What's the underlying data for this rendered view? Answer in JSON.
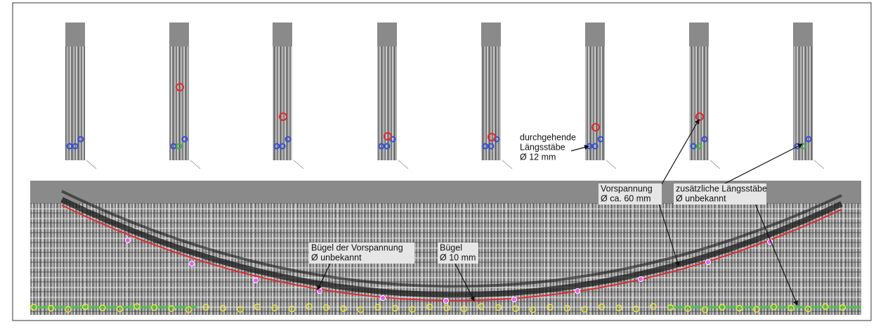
{
  "annotations": [
    {
      "lines": [
        "durchgehende",
        "Längsstäbe",
        "Ø 12 mm"
      ]
    },
    {
      "lines": [
        "Vorspannung",
        "Ø ca. 60 mm"
      ]
    },
    {
      "lines": [
        "zusätzliche Längsstäbe",
        "Ø unbekannt"
      ]
    },
    {
      "lines": [
        "Bügel der  Vorspannung",
        "Ø unbekannt"
      ]
    },
    {
      "lines": [
        "Bügel",
        "Ø 10 mm"
      ]
    }
  ]
}
